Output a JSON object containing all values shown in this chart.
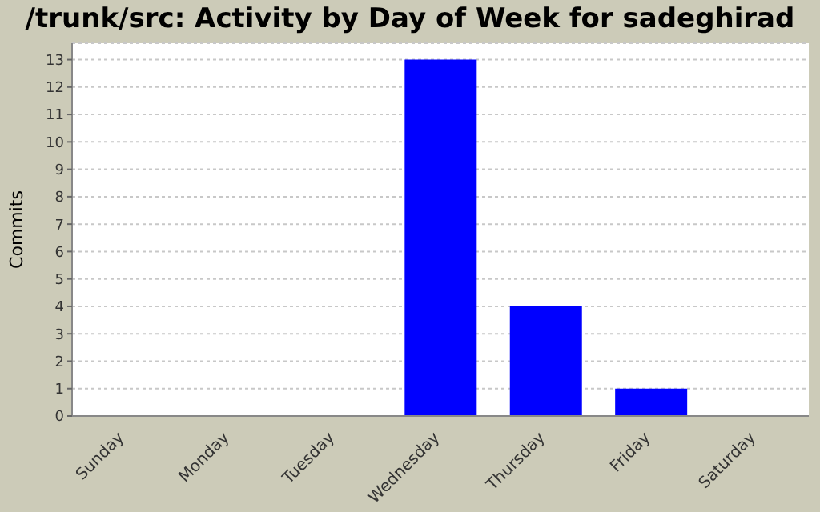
{
  "chart_data": {
    "type": "bar",
    "title": "/trunk/src: Activity by Day of Week for sadeghirad",
    "ylabel": "Commits",
    "categories": [
      "Sunday",
      "Monday",
      "Tuesday",
      "Wednesday",
      "Thursday",
      "Friday",
      "Saturday"
    ],
    "values": [
      0,
      0,
      0,
      13,
      4,
      1,
      0
    ],
    "color": "#0000ff",
    "ylim": [
      0,
      13.6
    ],
    "yticks": [
      0,
      1,
      2,
      3,
      4,
      5,
      6,
      7,
      8,
      9,
      10,
      11,
      12,
      13
    ],
    "grid": "y"
  }
}
